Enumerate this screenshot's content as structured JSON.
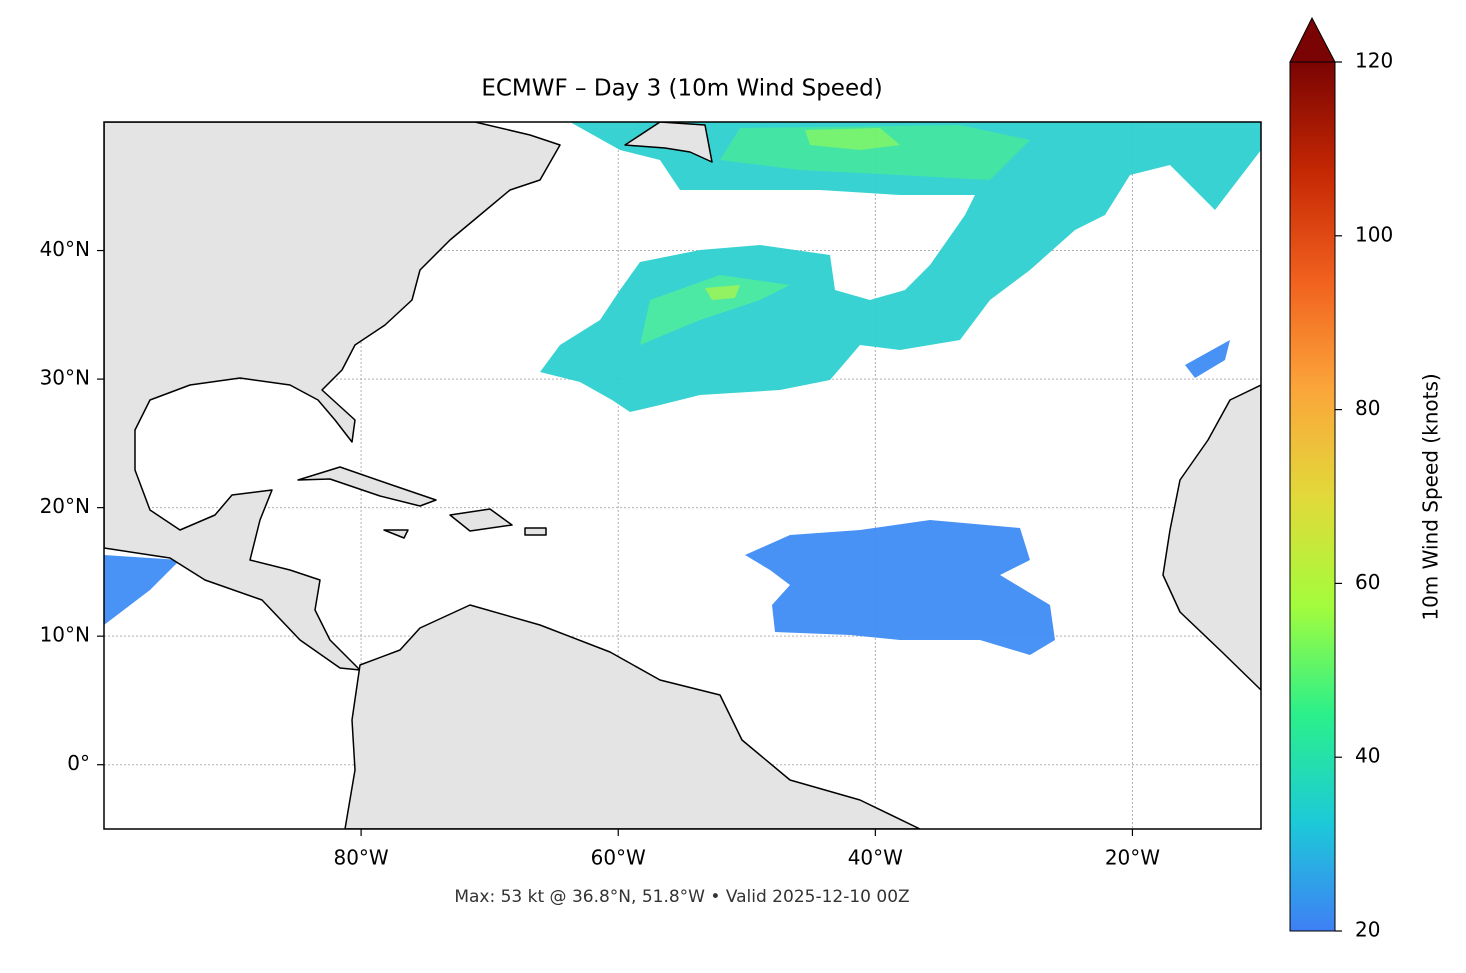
{
  "chart_data": {
    "type": "map",
    "title": "ECMWF – Day 3 (10m Wind Speed)",
    "footnote": "Max: 53 kt @ 36.8°N, 51.8°W • Valid 2025-12-10 00Z",
    "xlim": [
      -100,
      -10
    ],
    "ylim": [
      -5,
      50
    ],
    "xticks": [
      {
        "value": -80,
        "label": "80°W"
      },
      {
        "value": -60,
        "label": "60°W"
      },
      {
        "value": -40,
        "label": "40°W"
      },
      {
        "value": -20,
        "label": "20°W"
      }
    ],
    "yticks": [
      {
        "value": 0,
        "label": "0°"
      },
      {
        "value": 10,
        "label": "10°N"
      },
      {
        "value": 20,
        "label": "20°N"
      },
      {
        "value": 30,
        "label": "30°N"
      },
      {
        "value": 40,
        "label": "40°N"
      }
    ],
    "grid": true,
    "colorbar": {
      "label": "10m Wind Speed (knots)",
      "lim": [
        20,
        120
      ],
      "ticks": [
        20,
        40,
        60,
        80,
        100,
        120
      ],
      "colors": [
        "#3f7ff5",
        "#1ccad8",
        "#2bf08a",
        "#a4fc3c",
        "#e2d93a",
        "#fba53a",
        "#f1601e",
        "#c42703",
        "#7a0403"
      ]
    }
  }
}
